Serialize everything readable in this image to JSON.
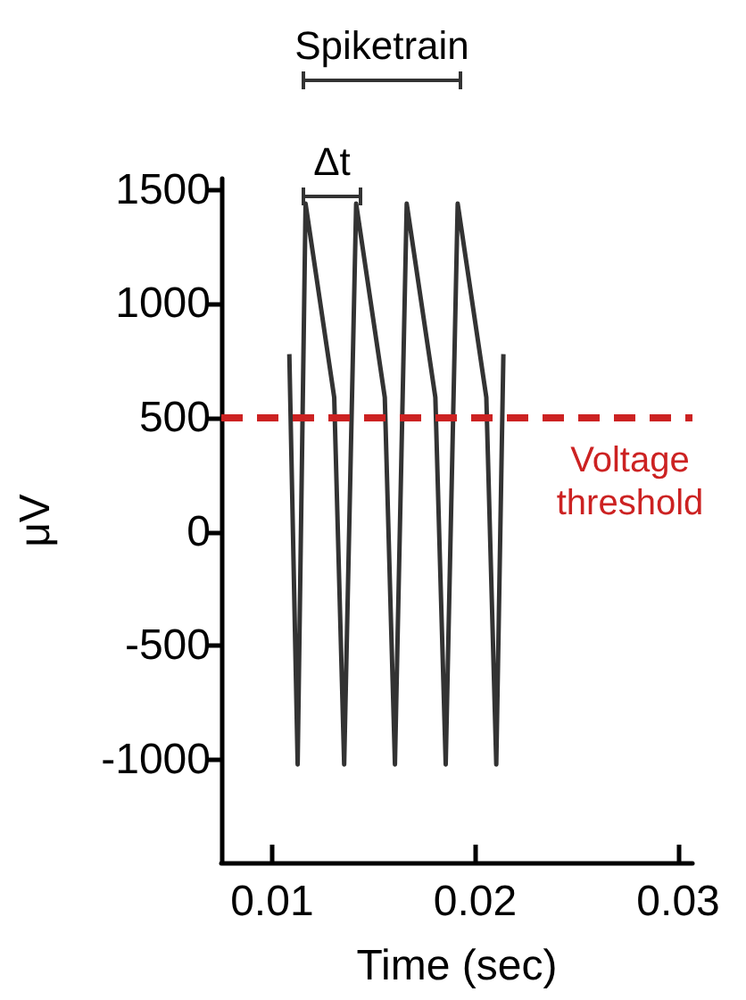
{
  "chart_data": {
    "type": "line",
    "xlabel": "Time (sec)",
    "ylabel": "μV",
    "annotations": [
      "Spiketrain",
      "Δt"
    ],
    "x": [
      0.01085,
      0.01126,
      0.01165,
      0.01306,
      0.01355,
      0.01414,
      0.01555,
      0.01605,
      0.01663,
      0.01804,
      0.01855,
      0.01914,
      0.02055,
      0.02104,
      0.02139
    ],
    "series": [
      {
        "color": "#333333",
        "values": [
          780,
          -1020,
          1440,
          590,
          -1020,
          1440,
          590,
          -1020,
          1440,
          590,
          -1020,
          1440,
          590,
          -1020,
          780
        ]
      }
    ],
    "xlim": [
      0.0075,
      0.0307
    ],
    "xticks": [
      0.01,
      0.02,
      0.03
    ],
    "ylim": [
      -1450,
      1550
    ],
    "yticks": [
      -1000,
      -500,
      0,
      500,
      1000,
      1500
    ],
    "ref_lines": [
      {
        "axis": "y",
        "value": 500,
        "label": "Voltage threshold",
        "color": "#cc2222",
        "line_style": "dashed"
      }
    ],
    "grid": false,
    "marker": "none",
    "line_style": "solid"
  }
}
